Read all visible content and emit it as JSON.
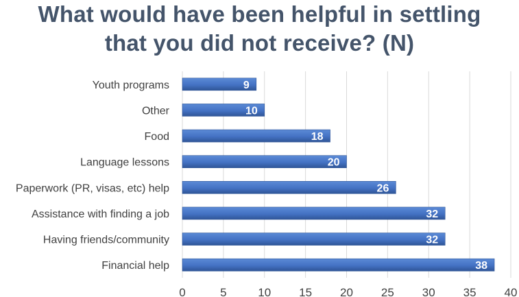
{
  "chart_data": {
    "type": "bar",
    "orientation": "horizontal",
    "title_lines": [
      "What would have been helpful in settling",
      "that you did not receive? (N)"
    ],
    "categories": [
      "Youth programs",
      "Other",
      "Food",
      "Language lessons",
      "Paperwork (PR, visas, etc) help",
      "Assistance with finding a job",
      "Having friends/community",
      "Financial help"
    ],
    "values": [
      9,
      10,
      18,
      20,
      26,
      32,
      32,
      38
    ],
    "xlim": [
      0,
      40
    ],
    "xticks": [
      "0",
      "5",
      "10",
      "15",
      "20",
      "25",
      "30",
      "35",
      "40"
    ],
    "xlabel": "",
    "ylabel": "",
    "grid": true,
    "colors": {
      "bar": "#4472c4",
      "bar_dark": "#2f5597",
      "title": "#44546a",
      "text": "#404040",
      "grid": "#d9d9d9",
      "label": "#ffffff"
    }
  }
}
